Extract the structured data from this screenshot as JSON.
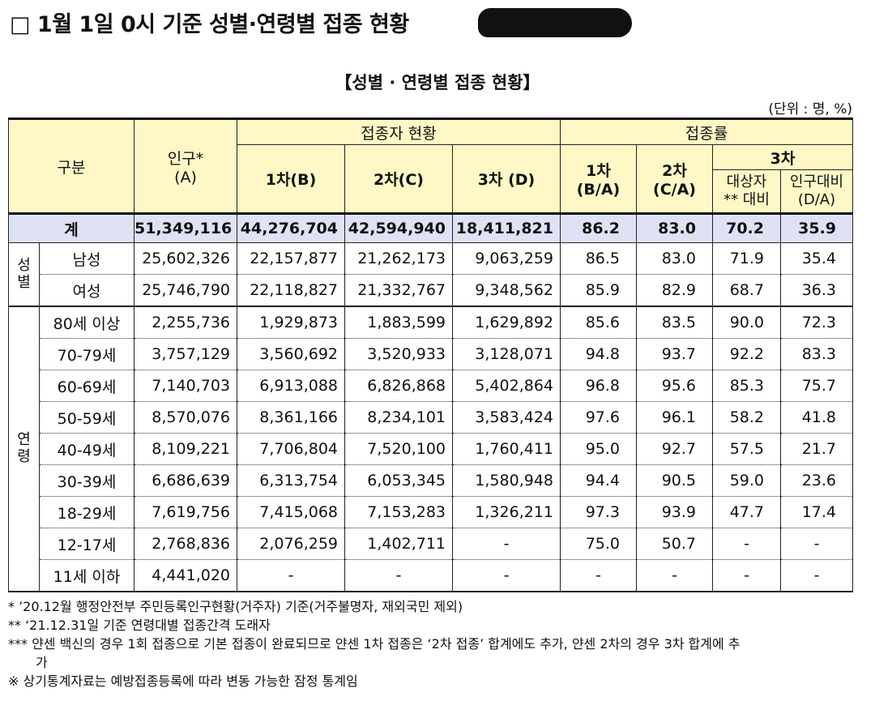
{
  "title": "□ 1월 1일 0시 기준 성별·연령별 접종 현황",
  "table_title": "【성별 · 연령별 접종 현황】",
  "unit": "(단위 : 명, %)",
  "header": {
    "category": "구분",
    "population": "인구*",
    "population_sub": "(A)",
    "vaccinated_group": "접종자 현황",
    "rate_group": "접종률",
    "dose1": "1차(B)",
    "dose2": "2차(C)",
    "dose3": "3차 (D)",
    "rate1_a": "1차",
    "rate1_b": "(B/A)",
    "rate2_a": "2차",
    "rate2_b": "(C/A)",
    "rate3": "3차",
    "rate3_target_a": "대상자",
    "rate3_target_b": "** 대비",
    "rate3_pop_a": "인구대비",
    "rate3_pop_b": "(D/A)"
  },
  "total": {
    "label": "계",
    "population": "51,349,116",
    "d1": "44,276,704",
    "d2": "42,594,940",
    "d3": "18,411,821",
    "r1": "86.2",
    "r2": "83.0",
    "r3t": "70.2",
    "r3p": "35.9"
  },
  "gender_group": "성\n별",
  "gender_rows": [
    {
      "label": "남성",
      "population": "25,602,326",
      "d1": "22,157,877",
      "d2": "21,262,173",
      "d3": "9,063,259",
      "r1": "86.5",
      "r2": "83.0",
      "r3t": "71.9",
      "r3p": "35.4"
    },
    {
      "label": "여성",
      "population": "25,746,790",
      "d1": "22,118,827",
      "d2": "21,332,767",
      "d3": "9,348,562",
      "r1": "85.9",
      "r2": "82.9",
      "r3t": "68.7",
      "r3p": "36.3"
    }
  ],
  "age_group": "연\n령",
  "age_rows": [
    {
      "label": "80세 이상",
      "population": "2,255,736",
      "d1": "1,929,873",
      "d2": "1,883,599",
      "d3": "1,629,892",
      "r1": "85.6",
      "r2": "83.5",
      "r3t": "90.0",
      "r3p": "72.3"
    },
    {
      "label": "70-79세",
      "population": "3,757,129",
      "d1": "3,560,692",
      "d2": "3,520,933",
      "d3": "3,128,071",
      "r1": "94.8",
      "r2": "93.7",
      "r3t": "92.2",
      "r3p": "83.3"
    },
    {
      "label": "60-69세",
      "population": "7,140,703",
      "d1": "6,913,088",
      "d2": "6,826,868",
      "d3": "5,402,864",
      "r1": "96.8",
      "r2": "95.6",
      "r3t": "85.3",
      "r3p": "75.7"
    },
    {
      "label": "50-59세",
      "population": "8,570,076",
      "d1": "8,361,166",
      "d2": "8,234,101",
      "d3": "3,583,424",
      "r1": "97.6",
      "r2": "96.1",
      "r3t": "58.2",
      "r3p": "41.8"
    },
    {
      "label": "40-49세",
      "population": "8,109,221",
      "d1": "7,706,804",
      "d2": "7,520,100",
      "d3": "1,760,411",
      "r1": "95.0",
      "r2": "92.7",
      "r3t": "57.5",
      "r3p": "21.7"
    },
    {
      "label": "30-39세",
      "population": "6,686,639",
      "d1": "6,313,754",
      "d2": "6,053,345",
      "d3": "1,580,948",
      "r1": "94.4",
      "r2": "90.5",
      "r3t": "59.0",
      "r3p": "23.6"
    },
    {
      "label": "18-29세",
      "population": "7,619,756",
      "d1": "7,415,068",
      "d2": "7,153,283",
      "d3": "1,326,211",
      "r1": "97.3",
      "r2": "93.9",
      "r3t": "47.7",
      "r3p": "17.4"
    },
    {
      "label": "12-17세",
      "population": "2,768,836",
      "d1": "2,076,259",
      "d2": "1,402,711",
      "d3": "-",
      "r1": "75.0",
      "r2": "50.7",
      "r3t": "-",
      "r3p": "-"
    },
    {
      "label": "11세 이하",
      "population": "4,441,020",
      "d1": "-",
      "d2": "-",
      "d3": "-",
      "r1": "-",
      "r2": "-",
      "r3t": "-",
      "r3p": "-"
    }
  ],
  "notes": [
    " * ’20.12월 행정안전부 주민등록인구현황(거주자) 기준(거주불명자, 재외국민 제외)",
    " ** ‘21.12.31일 기준 연령대별 접종간격 도래자",
    "*** 얀센 백신의 경우 1회 접종으로 기본 접종이 완료되므로 얀센 1차 접종은 ‘2차 접종’ 합계에도 추가, 얀센 2차의 경우 3차 합계에 추",
    "가",
    "※ 상기통계자료는 예방접종등록에 따라 변동 가능한 잠정 통계임"
  ]
}
